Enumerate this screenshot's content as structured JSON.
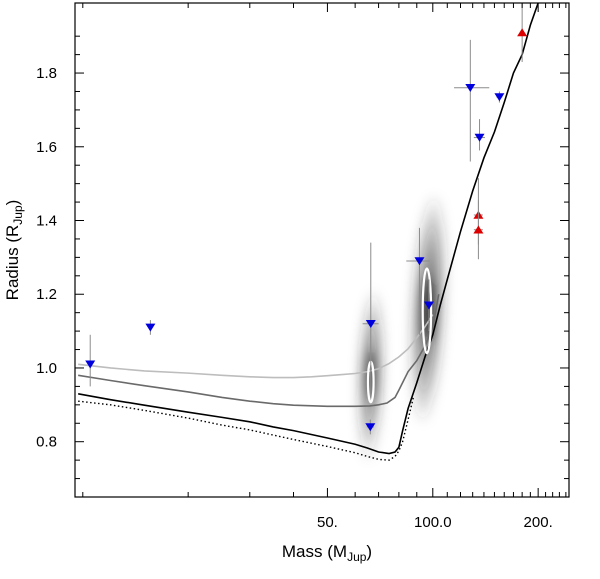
{
  "chart_data": {
    "type": "scatter",
    "title": "",
    "x_scale": "log",
    "xlabel": {
      "main": "Mass (M",
      "sub": "Jup",
      "close": ")"
    },
    "ylabel": {
      "main": "Radius (R",
      "sub": "Jup",
      "close": ")"
    },
    "xlim": [
      9.5,
      245
    ],
    "ylim": [
      0.65,
      1.99
    ],
    "x_ticks": [
      {
        "value": 50,
        "label": "50."
      },
      {
        "value": 100,
        "label": "100.0"
      },
      {
        "value": 200,
        "label": "200."
      }
    ],
    "y_ticks": [
      {
        "value": 0.8,
        "label": "0.8"
      },
      {
        "value": 1.0,
        "label": "1.0"
      },
      {
        "value": 1.2,
        "label": "1.2"
      },
      {
        "value": 1.4,
        "label": "1.4"
      },
      {
        "value": 1.6,
        "label": "1.6"
      },
      {
        "value": 1.8,
        "label": "1.8"
      }
    ],
    "series": [
      {
        "name": "blue-downward-triangles",
        "marker": "triangle-down",
        "color": "#0000dd",
        "points": [
          {
            "x": 10.5,
            "y": 1.01,
            "yerr": [
              0.06,
              0.08
            ],
            "xerr": [
              0,
              0
            ]
          },
          {
            "x": 15.6,
            "y": 1.11,
            "yerr": [
              0.02,
              0.02
            ],
            "xerr": [
              0,
              0
            ]
          },
          {
            "x": 66.5,
            "y": 1.12,
            "yerr": [
              0.2,
              0.22
            ],
            "xerr": [
              3.5,
              3.5
            ]
          },
          {
            "x": 66.3,
            "y": 0.84,
            "yerr": [
              0.02,
              0.02
            ],
            "xerr": [
              1.5,
              1.5
            ]
          },
          {
            "x": 91.6,
            "y": 1.29,
            "yerr": [
              0.2,
              0.09
            ],
            "xerr": [
              7.6,
              6.4
            ]
          },
          {
            "x": 97.5,
            "y": 1.17,
            "yerr": [
              0.07,
              0.07
            ],
            "xerr": [
              0,
              0
            ]
          },
          {
            "x": 128,
            "y": 1.76,
            "yerr": [
              0.2,
              0.13
            ],
            "xerr": [
              13,
              17
            ]
          },
          {
            "x": 136,
            "y": 1.625,
            "yerr": [
              0.035,
              0.05
            ],
            "xerr": [
              5,
              5
            ]
          },
          {
            "x": 155,
            "y": 1.735,
            "yerr": [
              0.015,
              0.015
            ],
            "xerr": [
              3,
              3
            ]
          }
        ]
      },
      {
        "name": "red-upward-triangles",
        "marker": "triangle-up",
        "color": "#dd0000",
        "points": [
          {
            "x": 135,
            "y": 1.415,
            "yerr": [
              0.08,
              0.1
            ],
            "xerr": [
              4,
              4
            ]
          },
          {
            "x": 135,
            "y": 1.375,
            "yerr": [
              0.08,
              0.08
            ],
            "xerr": [
              4,
              4
            ]
          },
          {
            "x": 180,
            "y": 1.91,
            "yerr": [
              0.08,
              0.08
            ],
            "xerr": [
              0,
              0
            ]
          }
        ]
      }
    ],
    "curves": [
      {
        "name": "light-gray-model",
        "color": "#bdbdbd",
        "style": "solid",
        "points": [
          [
            9.7,
            1.01
          ],
          [
            12,
            1.0
          ],
          [
            15,
            0.992
          ],
          [
            20,
            0.986
          ],
          [
            25,
            0.98
          ],
          [
            30,
            0.976
          ],
          [
            35,
            0.974
          ],
          [
            40,
            0.974
          ],
          [
            45,
            0.976
          ],
          [
            50,
            0.979
          ],
          [
            55,
            0.982
          ],
          [
            60,
            0.985
          ],
          [
            65,
            0.99
          ],
          [
            70,
            0.998
          ],
          [
            75,
            1.012
          ],
          [
            80,
            1.03
          ],
          [
            85,
            1.052
          ],
          [
            90,
            1.082
          ],
          [
            95,
            1.112
          ],
          [
            100,
            1.145
          ]
        ]
      },
      {
        "name": "dark-gray-model",
        "color": "#6a6a6a",
        "style": "solid",
        "points": [
          [
            9.7,
            0.98
          ],
          [
            12,
            0.966
          ],
          [
            15,
            0.952
          ],
          [
            20,
            0.935
          ],
          [
            25,
            0.92
          ],
          [
            30,
            0.91
          ],
          [
            35,
            0.903
          ],
          [
            40,
            0.899
          ],
          [
            50,
            0.896
          ],
          [
            60,
            0.896
          ],
          [
            66,
            0.897
          ],
          [
            70,
            0.9
          ],
          [
            74,
            0.905
          ],
          [
            78,
            0.92
          ],
          [
            80,
            0.94
          ],
          [
            85,
            0.99
          ],
          [
            90,
            1.02
          ],
          [
            95,
            1.06
          ],
          [
            100,
            1.11
          ],
          [
            104,
            1.2
          ]
        ]
      },
      {
        "name": "black-model",
        "color": "#000000",
        "style": "solid",
        "points": [
          [
            9.7,
            0.93
          ],
          [
            12,
            0.914
          ],
          [
            15,
            0.899
          ],
          [
            20,
            0.88
          ],
          [
            25,
            0.866
          ],
          [
            30,
            0.854
          ],
          [
            35,
            0.84
          ],
          [
            40,
            0.83
          ],
          [
            50,
            0.81
          ],
          [
            60,
            0.793
          ],
          [
            65,
            0.783
          ],
          [
            70,
            0.772
          ],
          [
            75,
            0.768
          ],
          [
            78,
            0.772
          ],
          [
            80,
            0.785
          ],
          [
            82,
            0.83
          ],
          [
            85,
            0.89
          ],
          [
            90,
            0.96
          ],
          [
            95,
            1.03
          ],
          [
            100,
            1.09
          ],
          [
            105,
            1.17
          ],
          [
            110,
            1.24
          ],
          [
            120,
            1.37
          ],
          [
            130,
            1.48
          ],
          [
            140,
            1.57
          ],
          [
            150,
            1.64
          ],
          [
            160,
            1.72
          ],
          [
            170,
            1.8
          ],
          [
            180,
            1.85
          ],
          [
            190,
            1.93
          ],
          [
            200,
            1.99
          ]
        ]
      },
      {
        "name": "black-dotted-model",
        "color": "#000000",
        "style": "dotted",
        "points": [
          [
            9.7,
            0.91
          ],
          [
            12,
            0.9
          ],
          [
            15,
            0.885
          ],
          [
            20,
            0.864
          ],
          [
            25,
            0.845
          ],
          [
            30,
            0.832
          ],
          [
            35,
            0.818
          ],
          [
            40,
            0.806
          ],
          [
            50,
            0.787
          ],
          [
            60,
            0.77
          ],
          [
            65,
            0.76
          ],
          [
            70,
            0.752
          ],
          [
            75,
            0.75
          ],
          [
            78,
            0.76
          ],
          [
            80,
            0.775
          ],
          [
            82,
            0.8
          ],
          [
            85,
            0.86
          ],
          [
            88,
            0.92
          ]
        ]
      }
    ],
    "density_regions": [
      {
        "name": "density-left",
        "center": [
          66.5,
          0.98
        ],
        "sigma_logx": 0.018,
        "sigma_y": 0.12,
        "weight": 0.9,
        "tilt": 0.02
      },
      {
        "name": "density-right",
        "center": [
          97,
          1.16
        ],
        "sigma_logx": 0.025,
        "sigma_y": 0.16,
        "weight": 1.0,
        "tilt": 0.03
      }
    ],
    "contours": [
      {
        "name": "contour-left",
        "center": [
          66.5,
          0.962
        ],
        "rx_logx": 0.008,
        "ry": 0.055
      },
      {
        "name": "contour-right",
        "center": [
          96.2,
          1.155
        ],
        "rx_logx": 0.012,
        "ry": 0.115
      }
    ]
  }
}
